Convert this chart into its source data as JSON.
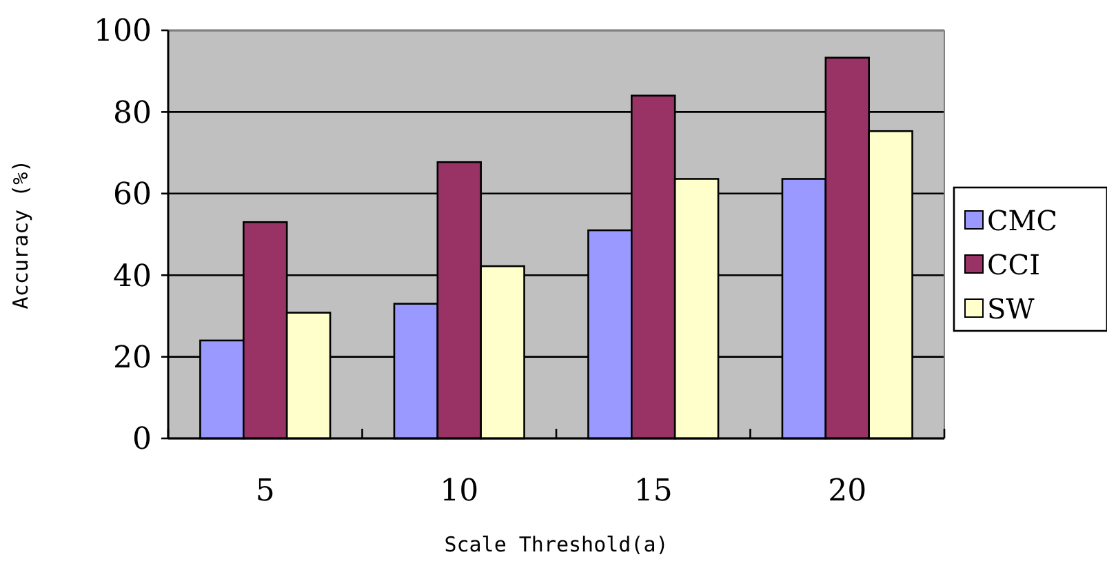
{
  "chart_data": {
    "type": "bar",
    "xlabel": "Scale Threshold(a)",
    "ylabel": "Accuracy (%)",
    "categories": [
      "5",
      "10",
      "15",
      "20"
    ],
    "series": [
      {
        "name": "CMC",
        "color": "#9999ff",
        "values": [
          24,
          33,
          51,
          63.6
        ]
      },
      {
        "name": "CCI",
        "color": "#993366",
        "values": [
          53,
          67.7,
          84,
          93.3
        ]
      },
      {
        "name": "SW",
        "color": "#ffffcc",
        "values": [
          30.8,
          42.2,
          63.6,
          75.3
        ]
      }
    ],
    "ylim": [
      0,
      100
    ],
    "yticks": [
      0,
      20,
      40,
      60,
      80,
      100
    ],
    "grid": "y",
    "legend": "right"
  }
}
